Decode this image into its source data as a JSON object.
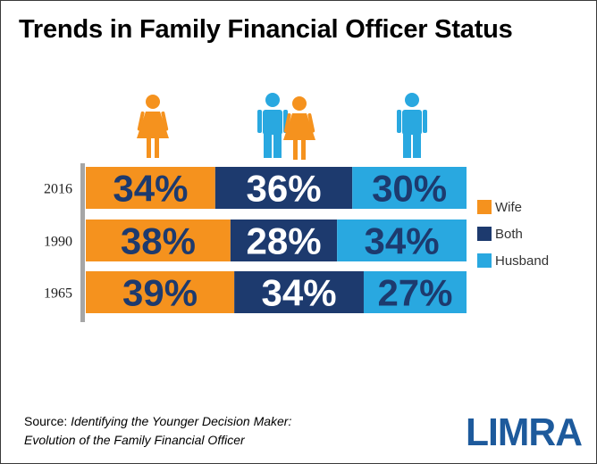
{
  "title": "Trends in Family Financial Officer Status",
  "source": {
    "label": "Source:",
    "line1": "Identifying the Younger Decision Maker:",
    "line2": "Evolution of the Family Financial Officer"
  },
  "logo": {
    "text": "LIMRA"
  },
  "icons": [
    "woman-icon",
    "couple-icon",
    "man-icon"
  ],
  "colors": {
    "wife": "#f5921e",
    "both": "#1d3a6e",
    "husband": "#29a8e0",
    "axis": "#a6a6a6"
  },
  "chart_data": {
    "type": "bar",
    "stacked": true,
    "orientation": "horizontal",
    "title": "Trends in Family Financial Officer Status",
    "categories": [
      "2016",
      "1990",
      "1965"
    ],
    "series": [
      {
        "name": "Wife",
        "values": [
          34,
          38,
          39
        ],
        "labels": [
          "34%",
          "38%",
          "39%"
        ]
      },
      {
        "name": "Both",
        "values": [
          36,
          28,
          34
        ],
        "labels": [
          "36%",
          "28%",
          "34%"
        ]
      },
      {
        "name": "Husband",
        "values": [
          30,
          34,
          27
        ],
        "labels": [
          "30%",
          "34%",
          "27%"
        ]
      }
    ],
    "xlim": [
      0,
      100
    ],
    "unit": "%",
    "legend_position": "right"
  }
}
